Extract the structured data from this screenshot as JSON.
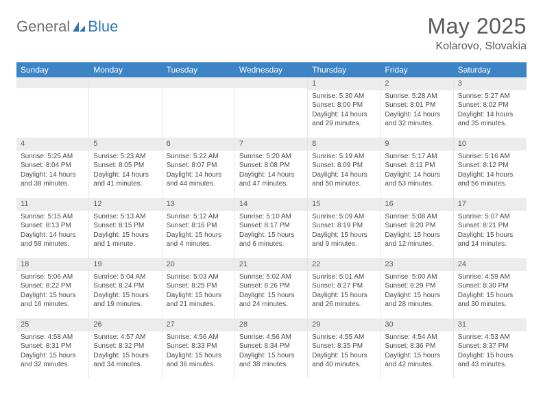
{
  "logo": {
    "text1": "General",
    "text2": "Blue"
  },
  "title": "May 2025",
  "location": "Kolarovo, Slovakia",
  "colors": {
    "header_bg": "#3d84c6",
    "header_text": "#ffffff",
    "daynum_bg": "#ececec",
    "text": "#4a4a4a",
    "logo_gray": "#6f6f6f",
    "logo_blue": "#2f75b5"
  },
  "weekdays": [
    "Sunday",
    "Monday",
    "Tuesday",
    "Wednesday",
    "Thursday",
    "Friday",
    "Saturday"
  ],
  "grid": [
    [
      {
        "blank": true
      },
      {
        "blank": true
      },
      {
        "blank": true
      },
      {
        "blank": true
      },
      {
        "day": "1",
        "sunrise": "Sunrise: 5:30 AM",
        "sunset": "Sunset: 8:00 PM",
        "daylight1": "Daylight: 14 hours",
        "daylight2": "and 29 minutes."
      },
      {
        "day": "2",
        "sunrise": "Sunrise: 5:28 AM",
        "sunset": "Sunset: 8:01 PM",
        "daylight1": "Daylight: 14 hours",
        "daylight2": "and 32 minutes."
      },
      {
        "day": "3",
        "sunrise": "Sunrise: 5:27 AM",
        "sunset": "Sunset: 8:02 PM",
        "daylight1": "Daylight: 14 hours",
        "daylight2": "and 35 minutes."
      }
    ],
    [
      {
        "day": "4",
        "sunrise": "Sunrise: 5:25 AM",
        "sunset": "Sunset: 8:04 PM",
        "daylight1": "Daylight: 14 hours",
        "daylight2": "and 38 minutes."
      },
      {
        "day": "5",
        "sunrise": "Sunrise: 5:23 AM",
        "sunset": "Sunset: 8:05 PM",
        "daylight1": "Daylight: 14 hours",
        "daylight2": "and 41 minutes."
      },
      {
        "day": "6",
        "sunrise": "Sunrise: 5:22 AM",
        "sunset": "Sunset: 8:07 PM",
        "daylight1": "Daylight: 14 hours",
        "daylight2": "and 44 minutes."
      },
      {
        "day": "7",
        "sunrise": "Sunrise: 5:20 AM",
        "sunset": "Sunset: 8:08 PM",
        "daylight1": "Daylight: 14 hours",
        "daylight2": "and 47 minutes."
      },
      {
        "day": "8",
        "sunrise": "Sunrise: 5:19 AM",
        "sunset": "Sunset: 8:09 PM",
        "daylight1": "Daylight: 14 hours",
        "daylight2": "and 50 minutes."
      },
      {
        "day": "9",
        "sunrise": "Sunrise: 5:17 AM",
        "sunset": "Sunset: 8:11 PM",
        "daylight1": "Daylight: 14 hours",
        "daylight2": "and 53 minutes."
      },
      {
        "day": "10",
        "sunrise": "Sunrise: 5:16 AM",
        "sunset": "Sunset: 8:12 PM",
        "daylight1": "Daylight: 14 hours",
        "daylight2": "and 56 minutes."
      }
    ],
    [
      {
        "day": "11",
        "sunrise": "Sunrise: 5:15 AM",
        "sunset": "Sunset: 8:13 PM",
        "daylight1": "Daylight: 14 hours",
        "daylight2": "and 58 minutes."
      },
      {
        "day": "12",
        "sunrise": "Sunrise: 5:13 AM",
        "sunset": "Sunset: 8:15 PM",
        "daylight1": "Daylight: 15 hours",
        "daylight2": "and 1 minute."
      },
      {
        "day": "13",
        "sunrise": "Sunrise: 5:12 AM",
        "sunset": "Sunset: 8:16 PM",
        "daylight1": "Daylight: 15 hours",
        "daylight2": "and 4 minutes."
      },
      {
        "day": "14",
        "sunrise": "Sunrise: 5:10 AM",
        "sunset": "Sunset: 8:17 PM",
        "daylight1": "Daylight: 15 hours",
        "daylight2": "and 6 minutes."
      },
      {
        "day": "15",
        "sunrise": "Sunrise: 5:09 AM",
        "sunset": "Sunset: 8:19 PM",
        "daylight1": "Daylight: 15 hours",
        "daylight2": "and 9 minutes."
      },
      {
        "day": "16",
        "sunrise": "Sunrise: 5:08 AM",
        "sunset": "Sunset: 8:20 PM",
        "daylight1": "Daylight: 15 hours",
        "daylight2": "and 12 minutes."
      },
      {
        "day": "17",
        "sunrise": "Sunrise: 5:07 AM",
        "sunset": "Sunset: 8:21 PM",
        "daylight1": "Daylight: 15 hours",
        "daylight2": "and 14 minutes."
      }
    ],
    [
      {
        "day": "18",
        "sunrise": "Sunrise: 5:06 AM",
        "sunset": "Sunset: 8:22 PM",
        "daylight1": "Daylight: 15 hours",
        "daylight2": "and 16 minutes."
      },
      {
        "day": "19",
        "sunrise": "Sunrise: 5:04 AM",
        "sunset": "Sunset: 8:24 PM",
        "daylight1": "Daylight: 15 hours",
        "daylight2": "and 19 minutes."
      },
      {
        "day": "20",
        "sunrise": "Sunrise: 5:03 AM",
        "sunset": "Sunset: 8:25 PM",
        "daylight1": "Daylight: 15 hours",
        "daylight2": "and 21 minutes."
      },
      {
        "day": "21",
        "sunrise": "Sunrise: 5:02 AM",
        "sunset": "Sunset: 8:26 PM",
        "daylight1": "Daylight: 15 hours",
        "daylight2": "and 24 minutes."
      },
      {
        "day": "22",
        "sunrise": "Sunrise: 5:01 AM",
        "sunset": "Sunset: 8:27 PM",
        "daylight1": "Daylight: 15 hours",
        "daylight2": "and 26 minutes."
      },
      {
        "day": "23",
        "sunrise": "Sunrise: 5:00 AM",
        "sunset": "Sunset: 8:29 PM",
        "daylight1": "Daylight: 15 hours",
        "daylight2": "and 28 minutes."
      },
      {
        "day": "24",
        "sunrise": "Sunrise: 4:59 AM",
        "sunset": "Sunset: 8:30 PM",
        "daylight1": "Daylight: 15 hours",
        "daylight2": "and 30 minutes."
      }
    ],
    [
      {
        "day": "25",
        "sunrise": "Sunrise: 4:58 AM",
        "sunset": "Sunset: 8:31 PM",
        "daylight1": "Daylight: 15 hours",
        "daylight2": "and 32 minutes."
      },
      {
        "day": "26",
        "sunrise": "Sunrise: 4:57 AM",
        "sunset": "Sunset: 8:32 PM",
        "daylight1": "Daylight: 15 hours",
        "daylight2": "and 34 minutes."
      },
      {
        "day": "27",
        "sunrise": "Sunrise: 4:56 AM",
        "sunset": "Sunset: 8:33 PM",
        "daylight1": "Daylight: 15 hours",
        "daylight2": "and 36 minutes."
      },
      {
        "day": "28",
        "sunrise": "Sunrise: 4:56 AM",
        "sunset": "Sunset: 8:34 PM",
        "daylight1": "Daylight: 15 hours",
        "daylight2": "and 38 minutes."
      },
      {
        "day": "29",
        "sunrise": "Sunrise: 4:55 AM",
        "sunset": "Sunset: 8:35 PM",
        "daylight1": "Daylight: 15 hours",
        "daylight2": "and 40 minutes."
      },
      {
        "day": "30",
        "sunrise": "Sunrise: 4:54 AM",
        "sunset": "Sunset: 8:36 PM",
        "daylight1": "Daylight: 15 hours",
        "daylight2": "and 42 minutes."
      },
      {
        "day": "31",
        "sunrise": "Sunrise: 4:53 AM",
        "sunset": "Sunset: 8:37 PM",
        "daylight1": "Daylight: 15 hours",
        "daylight2": "and 43 minutes."
      }
    ]
  ]
}
